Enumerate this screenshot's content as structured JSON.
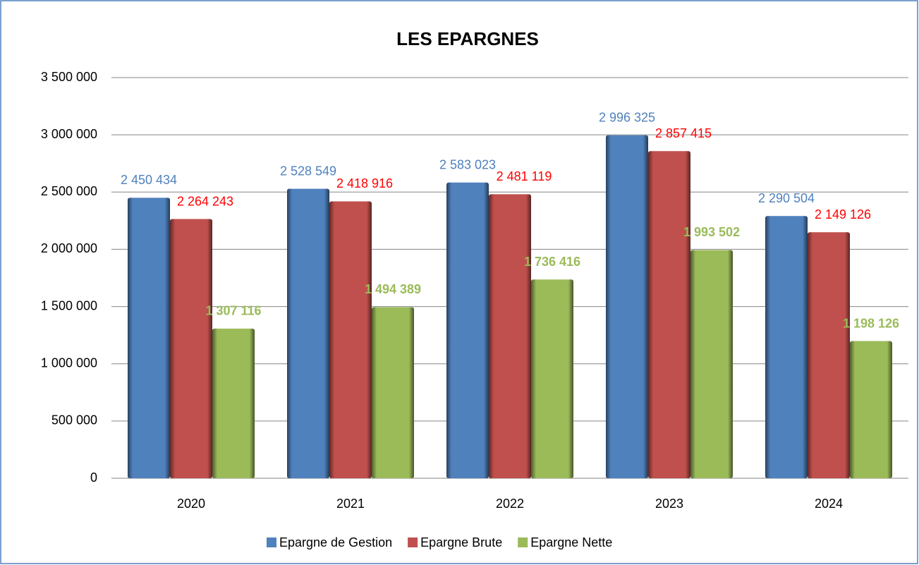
{
  "chart_data": {
    "type": "bar",
    "title": "LES EPARGNES",
    "categories": [
      "2020",
      "2021",
      "2022",
      "2023",
      "2024"
    ],
    "series": [
      {
        "name": "Epargne de Gestion",
        "color": "#4f81bd",
        "label_color": "#4f81bd",
        "values": [
          2450434,
          2528549,
          2583023,
          2996325,
          2290504
        ],
        "value_labels": [
          "2 450 434",
          "2 528 549",
          "2 583 023",
          "2 996 325",
          "2 290 504"
        ]
      },
      {
        "name": "Epargne Brute",
        "color": "#c0504d",
        "label_color": "#ff0000",
        "values": [
          2264243,
          2418916,
          2481119,
          2857415,
          2149126
        ],
        "value_labels": [
          "2 264 243",
          "2 418 916",
          "2 481 119",
          "2 857 415",
          "2 149 126"
        ]
      },
      {
        "name": "Epargne Nette",
        "color": "#9bbb59",
        "label_color": "#9bbb59",
        "label_bold": true,
        "values": [
          1307116,
          1494389,
          1736416,
          1993502,
          1198126
        ],
        "value_labels": [
          "1 307 116",
          "1 494 389",
          "1 736 416",
          "1 993 502",
          "1 198 126"
        ]
      }
    ],
    "ylim": [
      0,
      3500000
    ],
    "yticks": [
      0,
      {
        "value": 500000,
        "label": "500 000"
      },
      {
        "value": 1000000,
        "label": "1 000 000"
      },
      {
        "value": 1500000,
        "label": "1 500 000"
      },
      {
        "value": 2000000,
        "label": "2 000 000"
      },
      {
        "value": 2500000,
        "label": "2 500 000"
      },
      {
        "value": 3000000,
        "label": "3 000 000"
      },
      {
        "value": 3500000,
        "label": "3 500 000"
      }
    ],
    "grid": true,
    "legend": "bottom"
  }
}
